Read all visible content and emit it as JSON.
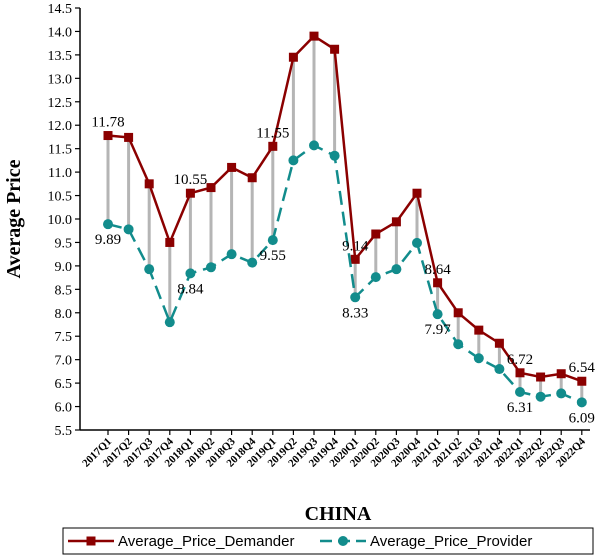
{
  "chart_data": {
    "type": "line",
    "xlabel": "CHINA",
    "ylabel": "Average Price",
    "ylim": [
      5.5,
      14.5
    ],
    "yticks": [
      5.5,
      6.0,
      6.5,
      7.0,
      7.5,
      8.0,
      8.5,
      9.0,
      9.5,
      10.0,
      10.5,
      11.0,
      11.5,
      12.0,
      12.5,
      13.0,
      13.5,
      14.0,
      14.5
    ],
    "categories": [
      "2017Q1",
      "2017Q2",
      "2017Q3",
      "2017Q4",
      "2018Q1",
      "2018Q2",
      "2018Q3",
      "2018Q4",
      "2019Q1",
      "2019Q2",
      "2019Q3",
      "2019Q4",
      "2020Q1",
      "2020Q2",
      "2020Q3",
      "2020Q4",
      "2021Q1",
      "2021Q2",
      "2021Q3",
      "2021Q4",
      "2022Q1",
      "2022Q2",
      "2022Q3",
      "2022Q4"
    ],
    "series": [
      {
        "name": "Average_Price_Demander",
        "color": "#8b0000",
        "marker": "square",
        "line_style": "solid",
        "values": [
          11.78,
          11.74,
          10.75,
          9.5,
          10.55,
          10.67,
          11.1,
          10.88,
          11.55,
          13.45,
          13.9,
          13.62,
          9.14,
          9.68,
          9.94,
          10.55,
          8.64,
          8.0,
          7.63,
          7.35,
          6.72,
          6.63,
          6.7,
          6.54
        ]
      },
      {
        "name": "Average_Price_Provider",
        "color": "#128c8c",
        "marker": "circle",
        "line_style": "dashed",
        "values": [
          9.89,
          9.78,
          8.93,
          7.8,
          8.84,
          8.97,
          9.25,
          9.07,
          9.55,
          11.25,
          11.57,
          11.35,
          8.33,
          8.76,
          8.93,
          9.49,
          7.97,
          7.33,
          7.03,
          6.8,
          6.31,
          6.21,
          6.28,
          6.09
        ]
      }
    ],
    "data_labels": [
      {
        "series": 0,
        "index": 0,
        "text": "11.78"
      },
      {
        "series": 1,
        "index": 0,
        "text": "9.89"
      },
      {
        "series": 0,
        "index": 4,
        "text": "10.55"
      },
      {
        "series": 1,
        "index": 4,
        "text": "8.84"
      },
      {
        "series": 0,
        "index": 8,
        "text": "11.55"
      },
      {
        "series": 1,
        "index": 8,
        "text": "9.55"
      },
      {
        "series": 0,
        "index": 12,
        "text": "9.14"
      },
      {
        "series": 1,
        "index": 12,
        "text": "8.33"
      },
      {
        "series": 0,
        "index": 16,
        "text": "8.64"
      },
      {
        "series": 1,
        "index": 16,
        "text": "7.97"
      },
      {
        "series": 0,
        "index": 20,
        "text": "6.72"
      },
      {
        "series": 1,
        "index": 20,
        "text": "6.31"
      },
      {
        "series": 0,
        "index": 23,
        "text": "6.54"
      },
      {
        "series": 1,
        "index": 23,
        "text": "6.09"
      }
    ],
    "drop_line_color": "#b5b5b5",
    "grid": false,
    "legend_position": "bottom"
  }
}
